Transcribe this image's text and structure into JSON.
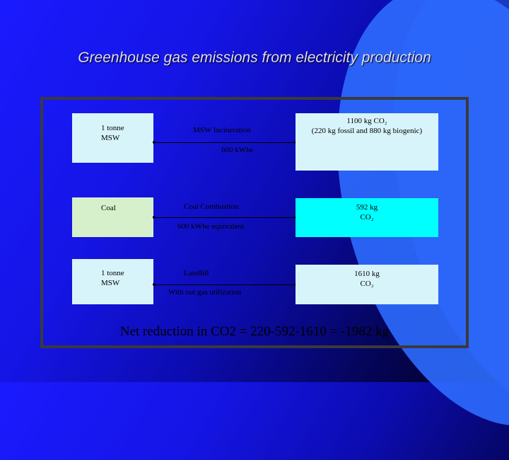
{
  "title": "Greenhouse gas emissions from electricity production",
  "rows": [
    {
      "input": [
        "1 tonne",
        "MSW"
      ],
      "process": "MSW Incineration",
      "sub": "600 kWhe",
      "output": [
        "1100 kg CO₂",
        "(220 kg fossil and 880 kg biogenic)"
      ]
    },
    {
      "input": [
        "Coal"
      ],
      "process": "Coal Combustion",
      "sub": "600 kWhe equivalent",
      "output": [
        "592 kg",
        "CO₂"
      ]
    },
    {
      "input": [
        "1 tonne",
        "MSW"
      ],
      "process": "Landfill",
      "sub": "With out gas utilization",
      "output": [
        "1610 kg",
        "CO₂"
      ]
    }
  ],
  "summary": "Net reduction in CO2 = 220-592-1610 = -1982 kg",
  "colors": {
    "box_light_blue": "#d8f4fb",
    "box_green": "#d7f0cc",
    "box_cyan": "#00ffff"
  }
}
